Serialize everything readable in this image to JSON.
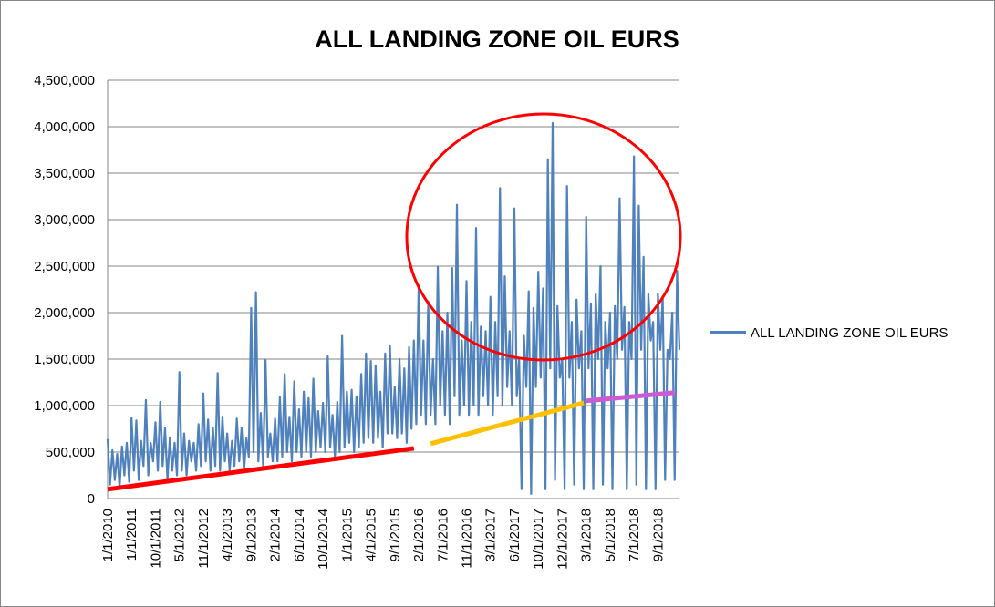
{
  "chart_data": {
    "type": "line",
    "title": "ALL LANDING ZONE OIL EURS",
    "categories": [
      "1/1/2010",
      null,
      null,
      null,
      null,
      null,
      null,
      null,
      null,
      null,
      "1/1/2011",
      null,
      null,
      null,
      null,
      null,
      null,
      null,
      null,
      null,
      "10/1/2011",
      null,
      null,
      null,
      null,
      null,
      null,
      null,
      null,
      null,
      "5/1/2012",
      null,
      null,
      null,
      null,
      null,
      null,
      null,
      null,
      null,
      "11/1/2012",
      null,
      null,
      null,
      null,
      null,
      null,
      null,
      null,
      null,
      "4/1/2013",
      null,
      null,
      null,
      null,
      null,
      null,
      null,
      null,
      null,
      "9/1/2013",
      null,
      null,
      null,
      null,
      null,
      null,
      null,
      null,
      null,
      "2/1/2014",
      null,
      null,
      null,
      null,
      null,
      null,
      null,
      null,
      null,
      "6/1/2014",
      null,
      null,
      null,
      null,
      null,
      null,
      null,
      null,
      null,
      "10/1/2014",
      null,
      null,
      null,
      null,
      null,
      null,
      null,
      null,
      null,
      "1/1/2015",
      null,
      null,
      null,
      null,
      null,
      null,
      null,
      null,
      null,
      "4/1/2015",
      null,
      null,
      null,
      null,
      null,
      null,
      null,
      null,
      null,
      "9/1/2015",
      null,
      null,
      null,
      null,
      null,
      null,
      null,
      null,
      null,
      "2/1/2016",
      null,
      null,
      null,
      null,
      null,
      null,
      null,
      null,
      null,
      "7/1/2016",
      null,
      null,
      null,
      null,
      null,
      null,
      null,
      null,
      null,
      "11/1/2016",
      null,
      null,
      null,
      null,
      null,
      null,
      null,
      null,
      null,
      "3/1/2017",
      null,
      null,
      null,
      null,
      null,
      null,
      null,
      null,
      null,
      "6/1/2017",
      null,
      null,
      null,
      null,
      null,
      null,
      null,
      null,
      null,
      "10/1/2017",
      null,
      null,
      null,
      null,
      null,
      null,
      null,
      null,
      null,
      "12/1/2017",
      null,
      null,
      null,
      null,
      null,
      null,
      null,
      null,
      null,
      "3/1/2018",
      null,
      null,
      null,
      null,
      null,
      null,
      null,
      null,
      null,
      "5/1/2018",
      null,
      null,
      null,
      null,
      null,
      null,
      null,
      null,
      null,
      "7/1/2018",
      null,
      null,
      null,
      null,
      null,
      null,
      null,
      null,
      null,
      "9/1/2018",
      null,
      null,
      null,
      null,
      null,
      null,
      null,
      null,
      null
    ],
    "series": [
      {
        "name": "ALL LANDING ZONE OIL EURS",
        "color": "#4f81bd",
        "values": [
          640000,
          150000,
          520000,
          200000,
          480000,
          120000,
          560000,
          250000,
          600000,
          180000,
          870000,
          300000,
          840000,
          200000,
          620000,
          350000,
          1060000,
          250000,
          600000,
          400000,
          820000,
          300000,
          1040000,
          350000,
          760000,
          200000,
          650000,
          300000,
          600000,
          250000,
          1360000,
          300000,
          700000,
          250000,
          620000,
          400000,
          600000,
          300000,
          800000,
          350000,
          1130000,
          400000,
          850000,
          300000,
          760000,
          350000,
          1350000,
          300000,
          880000,
          400000,
          700000,
          300000,
          620000,
          350000,
          860000,
          400000,
          760000,
          300000,
          650000,
          450000,
          2050000,
          500000,
          2220000,
          400000,
          920000,
          350000,
          1490000,
          450000,
          700000,
          400000,
          860000,
          400000,
          1090000,
          450000,
          1340000,
          500000,
          880000,
          400000,
          1260000,
          500000,
          960000,
          450000,
          1150000,
          500000,
          1080000,
          450000,
          1290000,
          500000,
          940000,
          550000,
          1030000,
          500000,
          1530000,
          550000,
          900000,
          450000,
          1040000,
          500000,
          1750000,
          550000,
          1150000,
          600000,
          1170000,
          500000,
          1100000,
          550000,
          1340000,
          600000,
          1560000,
          650000,
          1480000,
          600000,
          1430000,
          650000,
          1150000,
          550000,
          1560000,
          700000,
          1640000,
          700000,
          1200000,
          650000,
          1500000,
          700000,
          1400000,
          600000,
          1630000,
          750000,
          1700000,
          800000,
          2290000,
          900000,
          1700000,
          800000,
          2120000,
          900000,
          1500000,
          800000,
          2490000,
          1000000,
          1800000,
          900000,
          2000000,
          800000,
          2480000,
          1100000,
          3160000,
          900000,
          1700000,
          1000000,
          2340000,
          900000,
          1900000,
          1000000,
          2910000,
          900000,
          1850000,
          1100000,
          1800000,
          1000000,
          2170000,
          900000,
          1900000,
          1100000,
          3340000,
          1000000,
          2390000,
          1200000,
          1800000,
          1000000,
          3120000,
          1100000,
          1500000,
          100000,
          1750000,
          1200000,
          2230000,
          50000,
          2050000,
          1200000,
          2440000,
          1300000,
          2260000,
          100000,
          3650000,
          1400000,
          4040000,
          200000,
          2070000,
          1300000,
          1500000,
          100000,
          3360000,
          1300000,
          1900000,
          150000,
          2140000,
          1400000,
          1800000,
          100000,
          3030000,
          1400000,
          2100000,
          100000,
          2200000,
          1500000,
          2500000,
          150000,
          1900000,
          1400000,
          2000000,
          100000,
          2070000,
          1500000,
          3230000,
          1600000,
          2060000,
          100000,
          1900000,
          1500000,
          3680000,
          150000,
          3150000,
          1600000,
          2600000,
          100000,
          2200000,
          1700000,
          1900000,
          100000,
          2200000,
          1600000,
          2170000,
          200000,
          1600000,
          1500000,
          2000000,
          200000,
          2450000,
          1600000
        ]
      }
    ],
    "trend_lines": [
      {
        "color": "#ff0000",
        "x": [
          0,
          128
        ],
        "values": [
          100000,
          540000
        ]
      },
      {
        "color": "#ffc000",
        "x": [
          135,
          199
        ],
        "values": [
          590000,
          1030000
        ]
      },
      {
        "color": "#cc5ad6",
        "x": [
          200,
          237
        ],
        "values": [
          1050000,
          1140000
        ]
      }
    ],
    "ylim": [
      0,
      4500000
    ],
    "yticks": [
      {
        "value": 0,
        "label": "0"
      },
      {
        "value": 500000,
        "label": "500,000"
      },
      {
        "value": 1000000,
        "label": "1,000,000"
      },
      {
        "value": 1500000,
        "label": "1,500,000"
      },
      {
        "value": 2000000,
        "label": "2,000,000"
      },
      {
        "value": 2500000,
        "label": "2,500,000"
      },
      {
        "value": 3000000,
        "label": "3,000,000"
      },
      {
        "value": 3500000,
        "label": "3,500,000"
      },
      {
        "value": 4000000,
        "label": "4,000,000"
      },
      {
        "value": 4500000,
        "label": "4,500,000"
      }
    ],
    "grid": true,
    "legend": "right"
  }
}
